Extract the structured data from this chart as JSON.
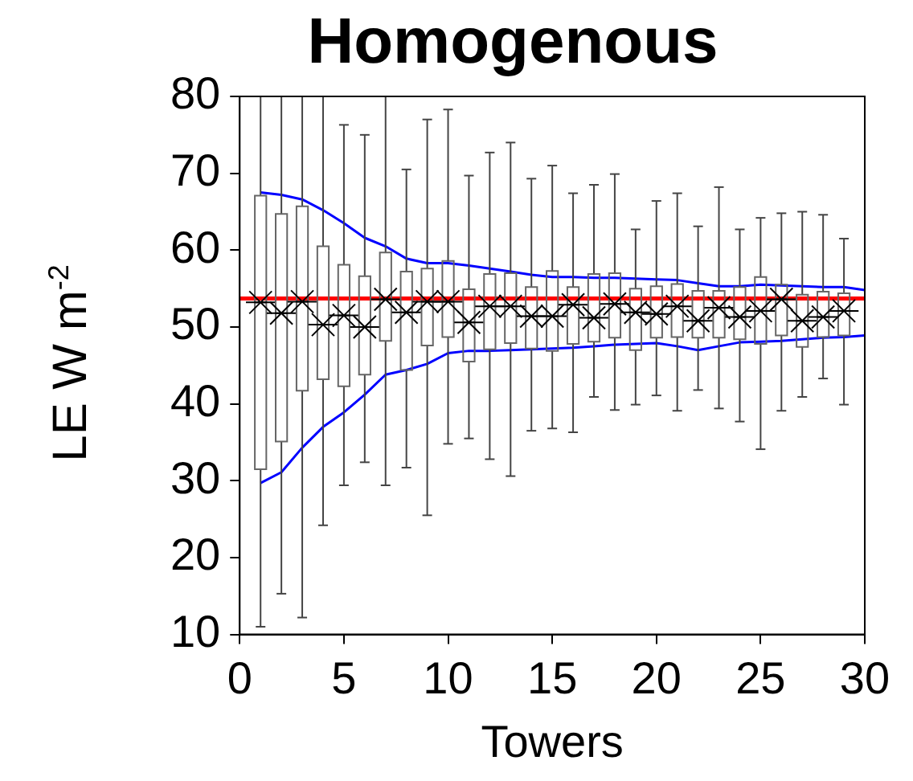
{
  "chart_data": {
    "type": "box",
    "title": "Homogenous",
    "xlabel": "Towers",
    "ylabel": "LE W m$^{-2}$",
    "x": [
      1,
      2,
      3,
      4,
      5,
      6,
      7,
      8,
      9,
      10,
      11,
      12,
      13,
      14,
      15,
      16,
      17,
      18,
      19,
      20,
      21,
      22,
      23,
      24,
      25,
      26,
      27,
      28,
      29
    ],
    "boxes": [
      {
        "low": 11,
        "q1": 31.5,
        "median": 53.2,
        "q3": 67.1,
        "high": 80,
        "mean": 53.2
      },
      {
        "low": 15.3,
        "q1": 35.1,
        "median": 51.8,
        "q3": 64.7,
        "high": 80,
        "mean": 51.8
      },
      {
        "low": 12.2,
        "q1": 41.7,
        "median": 53.3,
        "q3": 65.7,
        "high": 80,
        "mean": 53.3
      },
      {
        "low": 24.2,
        "q1": 43.2,
        "median": 50.3,
        "q3": 60.5,
        "high": 80,
        "mean": 50.3
      },
      {
        "low": 29.4,
        "q1": 42.3,
        "median": 51.5,
        "q3": 58.1,
        "high": 76.3,
        "mean": 51.5
      },
      {
        "low": 32.4,
        "q1": 43.8,
        "median": 50,
        "q3": 56.6,
        "high": 75,
        "mean": 50
      },
      {
        "low": 29.4,
        "q1": 48.2,
        "median": 53.6,
        "q3": 59.7,
        "high": 80,
        "mean": 53.6
      },
      {
        "low": 31.7,
        "q1": 44.4,
        "median": 51.9,
        "q3": 57.2,
        "high": 70.5,
        "mean": 51.9
      },
      {
        "low": 25.5,
        "q1": 47.6,
        "median": 53.3,
        "q3": 57.6,
        "high": 77,
        "mean": 53.3
      },
      {
        "low": 34.8,
        "q1": 48.7,
        "median": 53.3,
        "q3": 58.6,
        "high": 78.3,
        "mean": 53.3
      },
      {
        "low": 35.5,
        "q1": 45.5,
        "median": 50.6,
        "q3": 54.9,
        "high": 69.7,
        "mean": 50.6
      },
      {
        "low": 32.8,
        "q1": 47.1,
        "median": 52.7,
        "q3": 56.9,
        "high": 72.7,
        "mean": 52.7
      },
      {
        "low": 30.6,
        "q1": 47.9,
        "median": 52.7,
        "q3": 57,
        "high": 74,
        "mean": 52.7
      },
      {
        "low": 36.5,
        "q1": 47.2,
        "median": 51.4,
        "q3": 55.2,
        "high": 69.3,
        "mean": 51.4
      },
      {
        "low": 36.8,
        "q1": 46.9,
        "median": 51.4,
        "q3": 57.3,
        "high": 71,
        "mean": 51.4
      },
      {
        "low": 36.3,
        "q1": 47.8,
        "median": 52.9,
        "q3": 55.2,
        "high": 67.4,
        "mean": 52.9
      },
      {
        "low": 40.9,
        "q1": 48.1,
        "median": 51.2,
        "q3": 56.9,
        "high": 68.5,
        "mean": 51.2
      },
      {
        "low": 39.2,
        "q1": 48.6,
        "median": 53,
        "q3": 57,
        "high": 69.9,
        "mean": 53
      },
      {
        "low": 39.9,
        "q1": 47,
        "median": 51.9,
        "q3": 55,
        "high": 62.7,
        "mean": 51.9
      },
      {
        "low": 41.1,
        "q1": 48.6,
        "median": 51.7,
        "q3": 55.3,
        "high": 66.4,
        "mean": 51.7
      },
      {
        "low": 39.1,
        "q1": 48.7,
        "median": 52.7,
        "q3": 55.6,
        "high": 67.4,
        "mean": 52.7
      },
      {
        "low": 41.8,
        "q1": 48.6,
        "median": 50.8,
        "q3": 54.7,
        "high": 63.1,
        "mean": 50.8
      },
      {
        "low": 39.4,
        "q1": 48.6,
        "median": 52.5,
        "q3": 54.7,
        "high": 68.2,
        "mean": 52.5
      },
      {
        "low": 37.7,
        "q1": 48.4,
        "median": 51.3,
        "q3": 55.2,
        "high": 62.7,
        "mean": 51.3
      },
      {
        "low": 34.1,
        "q1": 47.8,
        "median": 52.1,
        "q3": 56.5,
        "high": 64.2,
        "mean": 52.1
      },
      {
        "low": 39.1,
        "q1": 48.9,
        "median": 53.6,
        "q3": 55.5,
        "high": 64.8,
        "mean": 53.6
      },
      {
        "low": 40.9,
        "q1": 47.4,
        "median": 50.8,
        "q3": 54.2,
        "high": 65,
        "mean": 50.8
      },
      {
        "low": 43.3,
        "q1": 48.7,
        "median": 51.3,
        "q3": 54.6,
        "high": 64.6,
        "mean": 51.3
      },
      {
        "low": 39.9,
        "q1": 48.9,
        "median": 52.1,
        "q3": 54.4,
        "high": 61.5,
        "mean": 52.1
      }
    ],
    "series": [
      {
        "type": "line",
        "color": "#0000ff",
        "x": [
          1,
          2,
          3,
          4,
          5,
          6,
          7,
          8,
          9,
          10,
          11,
          12,
          13,
          14,
          15,
          16,
          17,
          18,
          19,
          20,
          21,
          22,
          23,
          24,
          25,
          26,
          27,
          28,
          29,
          30
        ],
        "values": [
          67.5,
          67.2,
          66.6,
          65.2,
          63.5,
          61.6,
          60.5,
          58.9,
          58.3,
          58.3,
          58,
          57.6,
          57.2,
          56.8,
          56.5,
          56.5,
          56.4,
          56.4,
          56.3,
          56.2,
          56.1,
          55.7,
          55.3,
          55.3,
          55.5,
          55.4,
          55.3,
          55.2,
          55.2,
          54.8
        ]
      },
      {
        "type": "line",
        "color": "#0000ff",
        "x": [
          1,
          2,
          3,
          4,
          5,
          6,
          7,
          8,
          9,
          10,
          11,
          12,
          13,
          14,
          15,
          16,
          17,
          18,
          19,
          20,
          21,
          22,
          23,
          24,
          25,
          26,
          27,
          28,
          29,
          30
        ],
        "values": [
          29.7,
          31.1,
          34.3,
          37,
          38.9,
          41.2,
          43.8,
          44.4,
          45.2,
          46.6,
          46.9,
          46.9,
          47,
          47.1,
          47.2,
          47.3,
          47.5,
          47.7,
          47.8,
          47.9,
          47.5,
          47,
          47.5,
          48,
          48.1,
          48.2,
          48.4,
          48.6,
          48.7,
          48.9
        ]
      }
    ],
    "ref_lines": [
      {
        "axis": "y",
        "value": 53.7,
        "color": "#ff0000"
      }
    ],
    "xlim": [
      0,
      30
    ],
    "xticks": [
      0,
      5,
      10,
      15,
      20,
      25,
      30
    ],
    "ylim": [
      10,
      80
    ],
    "yticks": [
      10,
      20,
      30,
      40,
      50,
      60,
      70,
      80
    ],
    "grid": false,
    "legend": false
  }
}
